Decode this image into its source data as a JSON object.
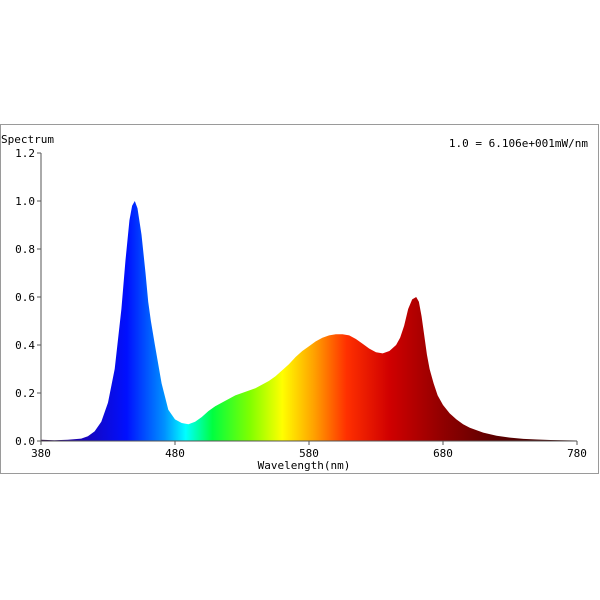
{
  "chart_data": {
    "type": "area",
    "title": "",
    "ylabel": "Spectrum",
    "xlabel": "Wavelength(nm)",
    "annotation": "1.0 = 6.106e+001mW/nm",
    "xlim": [
      380,
      780
    ],
    "ylim": [
      0,
      1.2
    ],
    "x_ticks": [
      380,
      480,
      580,
      680,
      780
    ],
    "y_ticks": [
      "0.0",
      "0.2",
      "0.4",
      "0.6",
      "0.8",
      "1.0",
      "1.2"
    ],
    "fill": "visible-spectrum gradient",
    "grid": false,
    "series": [
      {
        "x": [
          380,
          390,
          400,
          410,
          415,
          420,
          425,
          430,
          435,
          440,
          443,
          446,
          448,
          450,
          452,
          455,
          458,
          460,
          462,
          465,
          470,
          475,
          480,
          485,
          490,
          495,
          500,
          505,
          510,
          515,
          520,
          525,
          530,
          535,
          540,
          545,
          550,
          555,
          560,
          565,
          570,
          575,
          580,
          585,
          590,
          595,
          600,
          605,
          610,
          615,
          620,
          625,
          630,
          635,
          640,
          645,
          648,
          651,
          654,
          657,
          660,
          662,
          664,
          666,
          668,
          670,
          673,
          676,
          680,
          685,
          690,
          695,
          700,
          710,
          720,
          730,
          740,
          750,
          760,
          770,
          780
        ],
        "y": [
          0.005,
          0.003,
          0.005,
          0.01,
          0.02,
          0.04,
          0.08,
          0.16,
          0.3,
          0.55,
          0.75,
          0.92,
          0.98,
          1.0,
          0.97,
          0.86,
          0.7,
          0.58,
          0.5,
          0.4,
          0.24,
          0.13,
          0.09,
          0.075,
          0.07,
          0.08,
          0.1,
          0.125,
          0.145,
          0.16,
          0.175,
          0.19,
          0.2,
          0.21,
          0.22,
          0.235,
          0.25,
          0.27,
          0.295,
          0.32,
          0.35,
          0.375,
          0.395,
          0.415,
          0.43,
          0.44,
          0.445,
          0.445,
          0.44,
          0.425,
          0.405,
          0.385,
          0.37,
          0.365,
          0.375,
          0.4,
          0.43,
          0.48,
          0.55,
          0.59,
          0.6,
          0.58,
          0.52,
          0.44,
          0.36,
          0.3,
          0.24,
          0.19,
          0.15,
          0.115,
          0.09,
          0.07,
          0.055,
          0.035,
          0.022,
          0.014,
          0.009,
          0.006,
          0.004,
          0.003,
          0.002
        ]
      }
    ]
  }
}
